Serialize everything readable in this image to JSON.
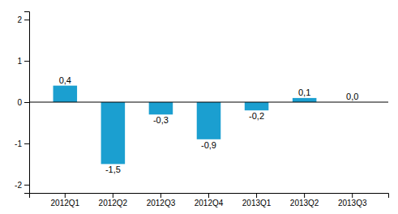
{
  "chart_data": {
    "type": "bar",
    "categories": [
      "2012Q1",
      "2012Q2",
      "2012Q3",
      "2012Q4",
      "2013Q1",
      "2013Q2",
      "2013Q3"
    ],
    "values": [
      0.4,
      -1.5,
      -0.3,
      -0.9,
      -0.2,
      0.1,
      0.0
    ],
    "value_labels": [
      "0,4",
      "-1,5",
      "-0,3",
      "-0,9",
      "-0,2",
      "0,1",
      "0,0"
    ],
    "color": "#1b9fd0",
    "ylim": [
      -2.2,
      2.2
    ],
    "yticks": [
      -2,
      -1,
      0,
      1,
      2
    ],
    "grid": false,
    "data_labels": true
  }
}
